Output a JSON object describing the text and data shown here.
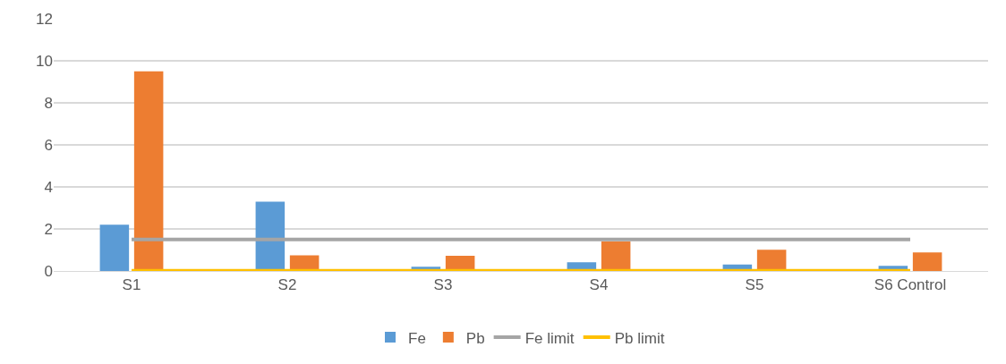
{
  "chart_data": {
    "type": "bar",
    "categories": [
      "S1",
      "S2",
      "S3",
      "S4",
      "S5",
      "S6 Control"
    ],
    "series": [
      {
        "name": "Fe",
        "color": "#5b9bd5",
        "values": [
          2.2,
          3.3,
          0.2,
          0.42,
          0.31,
          0.24
        ]
      },
      {
        "name": "Pb",
        "color": "#ed7d31",
        "values": [
          9.5,
          0.75,
          0.72,
          1.4,
          1.01,
          0.88
        ]
      },
      {
        "name": "Fe limit",
        "type": "line",
        "color": "#a5a5a5",
        "values": [
          1.5,
          1.5,
          1.5,
          1.5,
          1.5,
          1.5
        ]
      },
      {
        "name": "Pb limit",
        "type": "line",
        "color": "#ffc000",
        "values": [
          0.01,
          0.01,
          0.01,
          0.01,
          0.01,
          0.01
        ]
      }
    ],
    "ylim": [
      0,
      12
    ],
    "yticks": [
      0,
      2,
      4,
      6,
      8,
      10,
      12
    ],
    "grid": "y",
    "legend": "bottom",
    "marker": "none"
  }
}
